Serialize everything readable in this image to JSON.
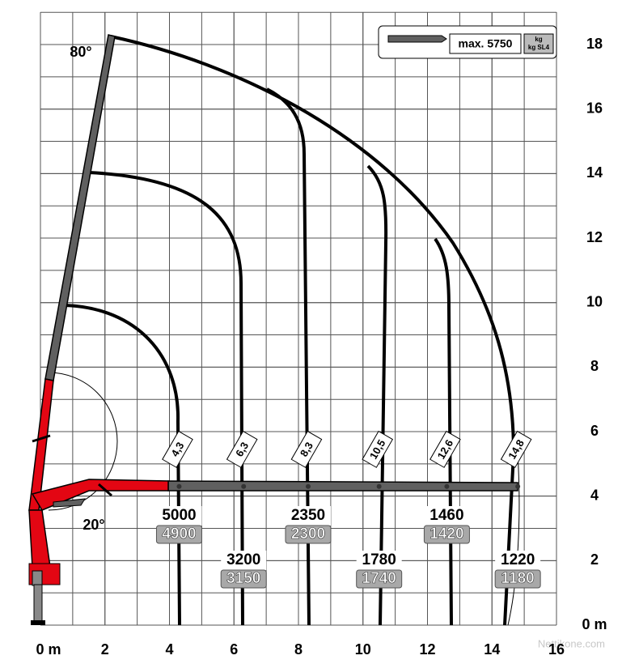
{
  "axes": {
    "xlim": [
      0,
      16
    ],
    "ylim": [
      0,
      18
    ],
    "x_ticks": [
      {
        "value": 0,
        "label": "0 m"
      },
      2,
      4,
      6,
      8,
      10,
      12,
      14,
      16
    ],
    "y_ticks": [
      {
        "value": 0,
        "label": "0 m"
      },
      2,
      4,
      6,
      8,
      10,
      12,
      14,
      16,
      18
    ]
  },
  "legend": {
    "max": "max. 5750",
    "unit": "kg",
    "unit_sl4": "kg SL4"
  },
  "angles": {
    "max": "80°",
    "min": "20°"
  },
  "reaches": [
    {
      "label": "4,3",
      "x": 4.3,
      "load_kg": 5000,
      "load_sl4": 4900
    },
    {
      "label": "6,3",
      "x": 6.3,
      "load_kg": 3200,
      "load_sl4": 3150
    },
    {
      "label": "8,3",
      "x": 8.3,
      "load_kg": 2350,
      "load_sl4": 2300
    },
    {
      "label": "10,5",
      "x": 10.5,
      "load_kg": 1780,
      "load_sl4": 1740
    },
    {
      "label": "12,6",
      "x": 12.6,
      "load_kg": 1460,
      "load_sl4": 1420
    },
    {
      "label": "14,8",
      "x": 14.8,
      "load_kg": 1220,
      "load_sl4": 1180
    }
  ],
  "watermark": "Nettikone.com"
}
